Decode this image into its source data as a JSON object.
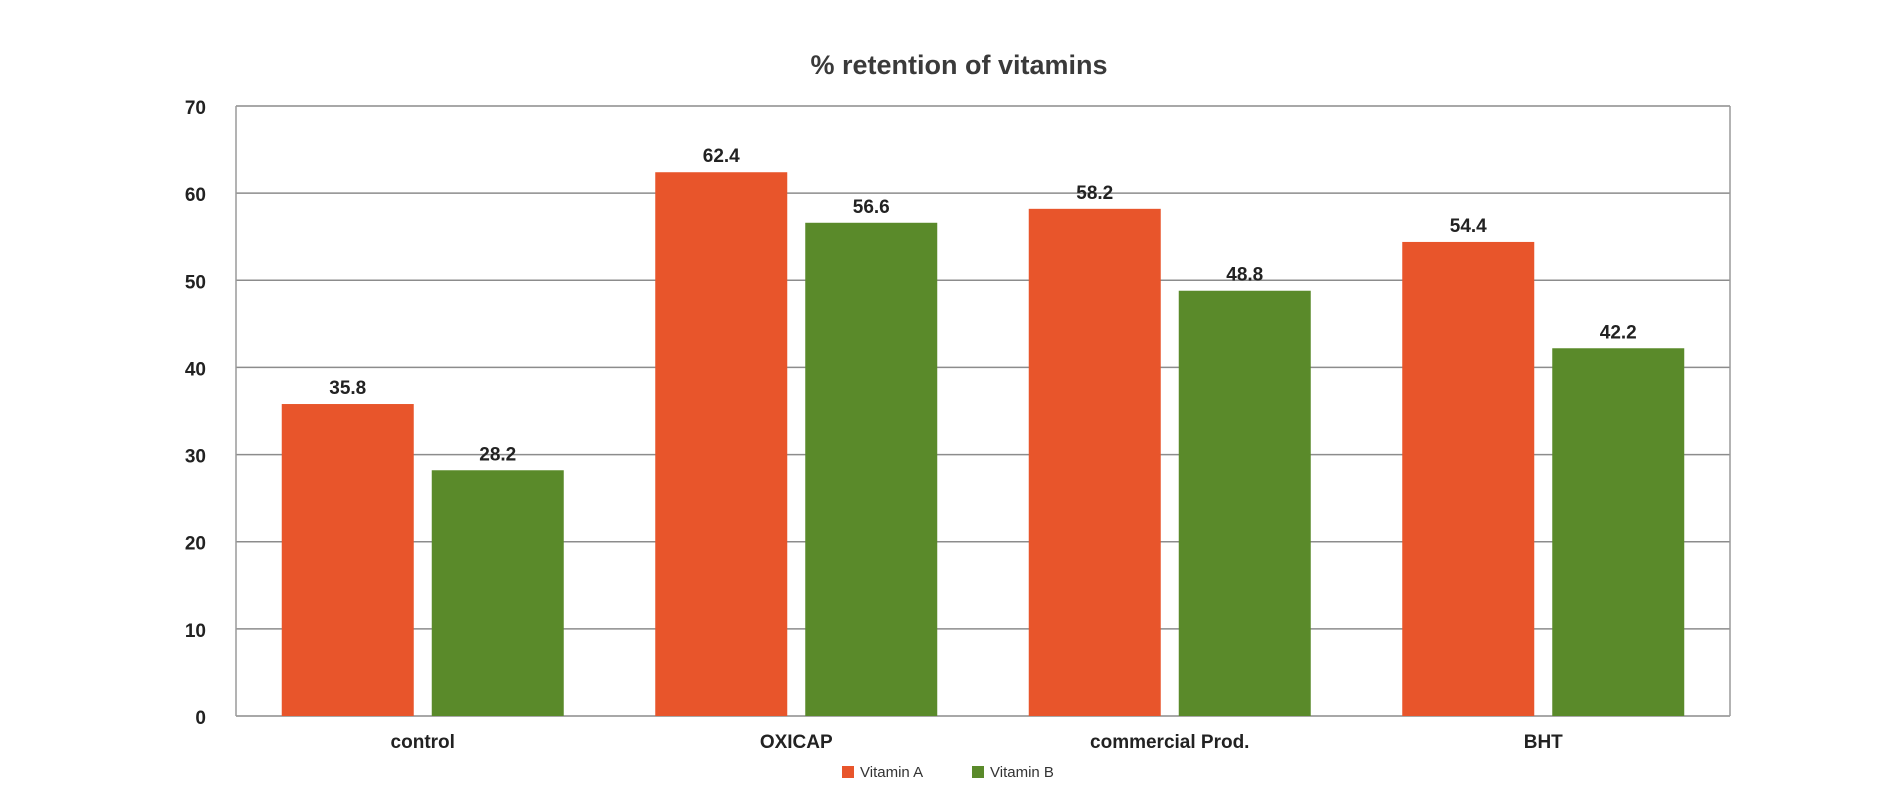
{
  "chart_data": {
    "type": "bar",
    "title": "% retention of vitamins",
    "xlabel": "",
    "ylabel": "",
    "categories": [
      "control",
      "OXICAP",
      "commercial Prod.",
      "BHT"
    ],
    "series": [
      {
        "name": "Vitamin A",
        "color": "#e8552b",
        "values": [
          35.8,
          62.4,
          58.2,
          54.4
        ]
      },
      {
        "name": "Vitamin B",
        "color": "#5a8a2a",
        "values": [
          28.2,
          56.6,
          48.8,
          42.2
        ]
      }
    ],
    "ylim": [
      0,
      70
    ],
    "yticks": [
      0,
      10,
      20,
      30,
      40,
      50,
      60,
      70
    ],
    "grid": true,
    "legend_position": "bottom",
    "data_labels": true
  }
}
